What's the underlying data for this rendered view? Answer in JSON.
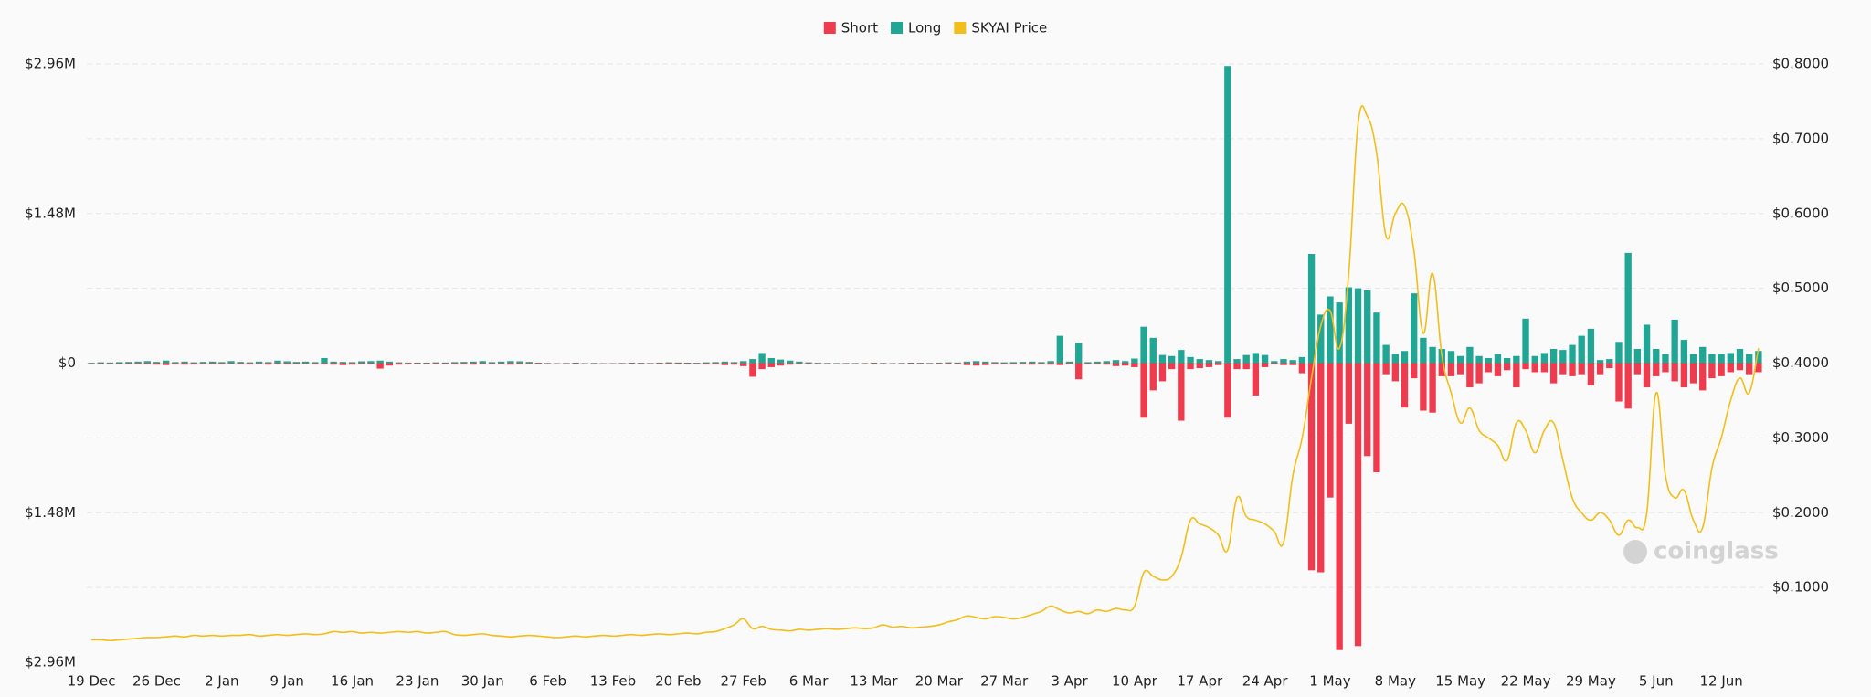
{
  "chart_data": {
    "type": "bar",
    "legend": "top",
    "grid": true,
    "watermark": "coinglass",
    "categories": [
      "19 Dec",
      null,
      null,
      null,
      null,
      null,
      null,
      "26 Dec",
      null,
      null,
      null,
      null,
      null,
      null,
      "2 Jan",
      null,
      null,
      null,
      null,
      null,
      null,
      "9 Jan",
      null,
      null,
      null,
      null,
      null,
      null,
      "16 Jan",
      null,
      null,
      null,
      null,
      null,
      null,
      "23 Jan",
      null,
      null,
      null,
      null,
      null,
      null,
      "30 Jan",
      null,
      null,
      null,
      null,
      null,
      null,
      "6 Feb",
      null,
      null,
      null,
      null,
      null,
      null,
      "13 Feb",
      null,
      null,
      null,
      null,
      null,
      null,
      "20 Feb",
      null,
      null,
      null,
      null,
      null,
      null,
      "27 Feb",
      null,
      null,
      null,
      null,
      null,
      null,
      "6 Mar",
      null,
      null,
      null,
      null,
      null,
      null,
      "13 Mar",
      null,
      null,
      null,
      null,
      null,
      null,
      "20 Mar",
      null,
      null,
      null,
      null,
      null,
      null,
      "27 Mar",
      null,
      null,
      null,
      null,
      null,
      null,
      "3 Apr",
      null,
      null,
      null,
      null,
      null,
      null,
      "10 Apr",
      null,
      null,
      null,
      null,
      null,
      null,
      "17 Apr",
      null,
      null,
      null,
      null,
      null,
      null,
      "24 Apr",
      null,
      null,
      null,
      null,
      null,
      null,
      "1 May",
      null,
      null,
      null,
      null,
      null,
      null,
      "8 May",
      null,
      null,
      null,
      null,
      null,
      null,
      "15 May",
      null,
      null,
      null,
      null,
      null,
      null,
      "22 May",
      null,
      null,
      null,
      null,
      null,
      null,
      "29 May",
      null,
      null,
      null,
      null,
      null,
      null,
      "5 Jun",
      null,
      null,
      null,
      null,
      null,
      null,
      "12 Jun",
      null,
      null,
      null,
      null
    ],
    "ylim": [
      -2960000,
      2960000
    ],
    "yticks": [
      {
        "value": 2960000,
        "label": "$2.96M"
      },
      {
        "value": 1480000,
        "label": "$1.48M"
      },
      {
        "value": 0,
        "label": "$0"
      },
      {
        "value": -1480000,
        "label": "$1.48M"
      },
      {
        "value": -2960000,
        "label": "$2.96M"
      }
    ],
    "y2lim": [
      0,
      0.8
    ],
    "y2ticks": [
      {
        "value": 0.1,
        "label": "$0.1000"
      },
      {
        "value": 0.2,
        "label": "$0.2000"
      },
      {
        "value": 0.3,
        "label": "$0.3000"
      },
      {
        "value": 0.4,
        "label": "$0.4000"
      },
      {
        "value": 0.5,
        "label": "$0.5000"
      },
      {
        "value": 0.6,
        "label": "$0.6000"
      },
      {
        "value": 0.7,
        "label": "$0.7000"
      },
      {
        "value": 0.8,
        "label": "$0.8000"
      }
    ],
    "series": [
      {
        "name": "Short",
        "color": "#ef3b4e",
        "values": [
          -3000,
          -5000,
          -4000,
          -5000,
          -8000,
          -10000,
          -12000,
          -15000,
          -20000,
          -10000,
          -15000,
          -12000,
          -8000,
          -10000,
          -8000,
          -5000,
          -10000,
          -12000,
          -8000,
          -15000,
          -10000,
          -12000,
          -8000,
          -5000,
          -10000,
          -12000,
          -15000,
          -20000,
          -15000,
          -10000,
          -8000,
          -55000,
          -25000,
          -15000,
          -10000,
          -5000,
          -5000,
          -8000,
          -6000,
          -10000,
          -12000,
          -15000,
          -10000,
          -8000,
          -10000,
          -15000,
          -12000,
          -8000,
          -5000,
          -3000,
          -2000,
          -3000,
          -5000,
          -2000,
          -3000,
          -2000,
          -2000,
          -3000,
          -5000,
          -4000,
          -3000,
          -5000,
          -8000,
          -6000,
          -5000,
          -4000,
          -10000,
          -12000,
          -20000,
          -15000,
          -30000,
          -135000,
          -60000,
          -40000,
          -25000,
          -15000,
          -8000,
          -5000,
          -3000,
          -3000,
          -2000,
          -3000,
          -2000,
          -3000,
          -5000,
          -3000,
          -2000,
          -3000,
          -5000,
          -4000,
          -3000,
          -5000,
          -8000,
          -6000,
          -20000,
          -25000,
          -20000,
          -12000,
          -8000,
          -10000,
          -12000,
          -15000,
          -10000,
          -15000,
          -20000,
          -10000,
          -160000,
          -8000,
          -10000,
          -15000,
          -30000,
          -25000,
          -40000,
          -540000,
          -270000,
          -180000,
          -60000,
          -570000,
          -60000,
          -50000,
          -40000,
          -20000,
          -540000,
          -60000,
          -60000,
          -320000,
          -40000,
          -10000,
          -20000,
          -20000,
          -100000,
          -2050000,
          -2070000,
          -1330000,
          -2840000,
          -600000,
          -2800000,
          -920000,
          -1080000,
          -110000,
          -180000,
          -440000,
          -150000,
          -470000,
          -490000,
          -130000,
          -130000,
          -110000,
          -240000,
          -200000,
          -90000,
          -130000,
          -70000,
          -240000,
          -60000,
          -90000,
          -90000,
          -200000,
          -110000,
          -130000,
          -110000,
          -220000,
          -110000,
          -50000,
          -380000,
          -450000,
          -110000,
          -240000,
          -130000,
          -90000,
          -180000,
          -240000,
          -200000,
          -270000,
          -150000,
          -130000,
          -90000,
          -70000,
          -110000,
          -90000
        ]
      },
      {
        "name": "Long",
        "color": "#21a594",
        "values": [
          5000,
          8000,
          6000,
          10000,
          12000,
          15000,
          20000,
          12000,
          25000,
          10000,
          15000,
          8000,
          12000,
          15000,
          10000,
          20000,
          12000,
          8000,
          15000,
          10000,
          25000,
          18000,
          12000,
          15000,
          10000,
          50000,
          15000,
          12000,
          10000,
          18000,
          20000,
          25000,
          15000,
          8000,
          5000,
          5000,
          5000,
          8000,
          6000,
          10000,
          12000,
          15000,
          20000,
          10000,
          15000,
          20000,
          18000,
          12000,
          5000,
          3000,
          2000,
          3000,
          5000,
          2000,
          3000,
          2000,
          2000,
          3000,
          5000,
          4000,
          3000,
          5000,
          8000,
          6000,
          5000,
          4000,
          8000,
          10000,
          15000,
          10000,
          20000,
          40000,
          100000,
          50000,
          35000,
          25000,
          15000,
          8000,
          5000,
          3000,
          3000,
          2000,
          3000,
          2000,
          5000,
          3000,
          2000,
          3000,
          5000,
          4000,
          3000,
          5000,
          8000,
          6000,
          15000,
          20000,
          15000,
          10000,
          8000,
          10000,
          12000,
          15000,
          10000,
          20000,
          270000,
          15000,
          200000,
          10000,
          15000,
          20000,
          30000,
          20000,
          45000,
          360000,
          250000,
          80000,
          70000,
          130000,
          60000,
          40000,
          30000,
          20000,
          2940000,
          40000,
          80000,
          100000,
          80000,
          20000,
          40000,
          30000,
          60000,
          1080000,
          480000,
          660000,
          600000,
          750000,
          740000,
          720000,
          500000,
          180000,
          90000,
          120000,
          690000,
          250000,
          160000,
          140000,
          120000,
          70000,
          160000,
          70000,
          50000,
          90000,
          50000,
          70000,
          440000,
          70000,
          100000,
          140000,
          130000,
          180000,
          270000,
          340000,
          30000,
          40000,
          210000,
          1090000,
          140000,
          380000,
          140000,
          90000,
          430000,
          230000,
          90000,
          160000,
          90000,
          90000,
          100000,
          140000,
          90000,
          120000
        ]
      },
      {
        "name": "SKYAI Price",
        "color": "#f2be1c",
        "type": "line",
        "axis": "y2",
        "values": [
          0.03,
          0.03,
          0.029,
          0.03,
          0.031,
          0.032,
          0.033,
          0.033,
          0.034,
          0.035,
          0.034,
          0.036,
          0.035,
          0.036,
          0.035,
          0.036,
          0.036,
          0.037,
          0.035,
          0.036,
          0.037,
          0.036,
          0.037,
          0.038,
          0.037,
          0.038,
          0.041,
          0.04,
          0.041,
          0.039,
          0.04,
          0.039,
          0.04,
          0.041,
          0.04,
          0.041,
          0.039,
          0.04,
          0.041,
          0.037,
          0.036,
          0.037,
          0.038,
          0.036,
          0.035,
          0.034,
          0.035,
          0.036,
          0.035,
          0.034,
          0.033,
          0.034,
          0.035,
          0.034,
          0.035,
          0.036,
          0.035,
          0.036,
          0.037,
          0.036,
          0.037,
          0.038,
          0.037,
          0.038,
          0.039,
          0.038,
          0.04,
          0.041,
          0.045,
          0.05,
          0.058,
          0.045,
          0.048,
          0.044,
          0.043,
          0.042,
          0.044,
          0.043,
          0.044,
          0.045,
          0.044,
          0.045,
          0.046,
          0.045,
          0.046,
          0.05,
          0.047,
          0.048,
          0.046,
          0.047,
          0.048,
          0.05,
          0.054,
          0.057,
          0.062,
          0.06,
          0.058,
          0.061,
          0.06,
          0.058,
          0.06,
          0.064,
          0.068,
          0.075,
          0.07,
          0.066,
          0.068,
          0.065,
          0.07,
          0.068,
          0.072,
          0.07,
          0.075,
          0.12,
          0.115,
          0.11,
          0.115,
          0.14,
          0.19,
          0.185,
          0.18,
          0.17,
          0.15,
          0.22,
          0.195,
          0.19,
          0.185,
          0.175,
          0.16,
          0.25,
          0.3,
          0.38,
          0.45,
          0.47,
          0.42,
          0.52,
          0.72,
          0.73,
          0.68,
          0.57,
          0.6,
          0.61,
          0.55,
          0.44,
          0.52,
          0.41,
          0.36,
          0.32,
          0.34,
          0.31,
          0.3,
          0.29,
          0.27,
          0.32,
          0.31,
          0.28,
          0.31,
          0.32,
          0.27,
          0.22,
          0.2,
          0.19,
          0.2,
          0.19,
          0.17,
          0.19,
          0.18,
          0.2,
          0.36,
          0.25,
          0.22,
          0.23,
          0.19,
          0.18,
          0.26,
          0.3,
          0.35,
          0.38,
          0.36,
          0.42
        ]
      }
    ]
  }
}
